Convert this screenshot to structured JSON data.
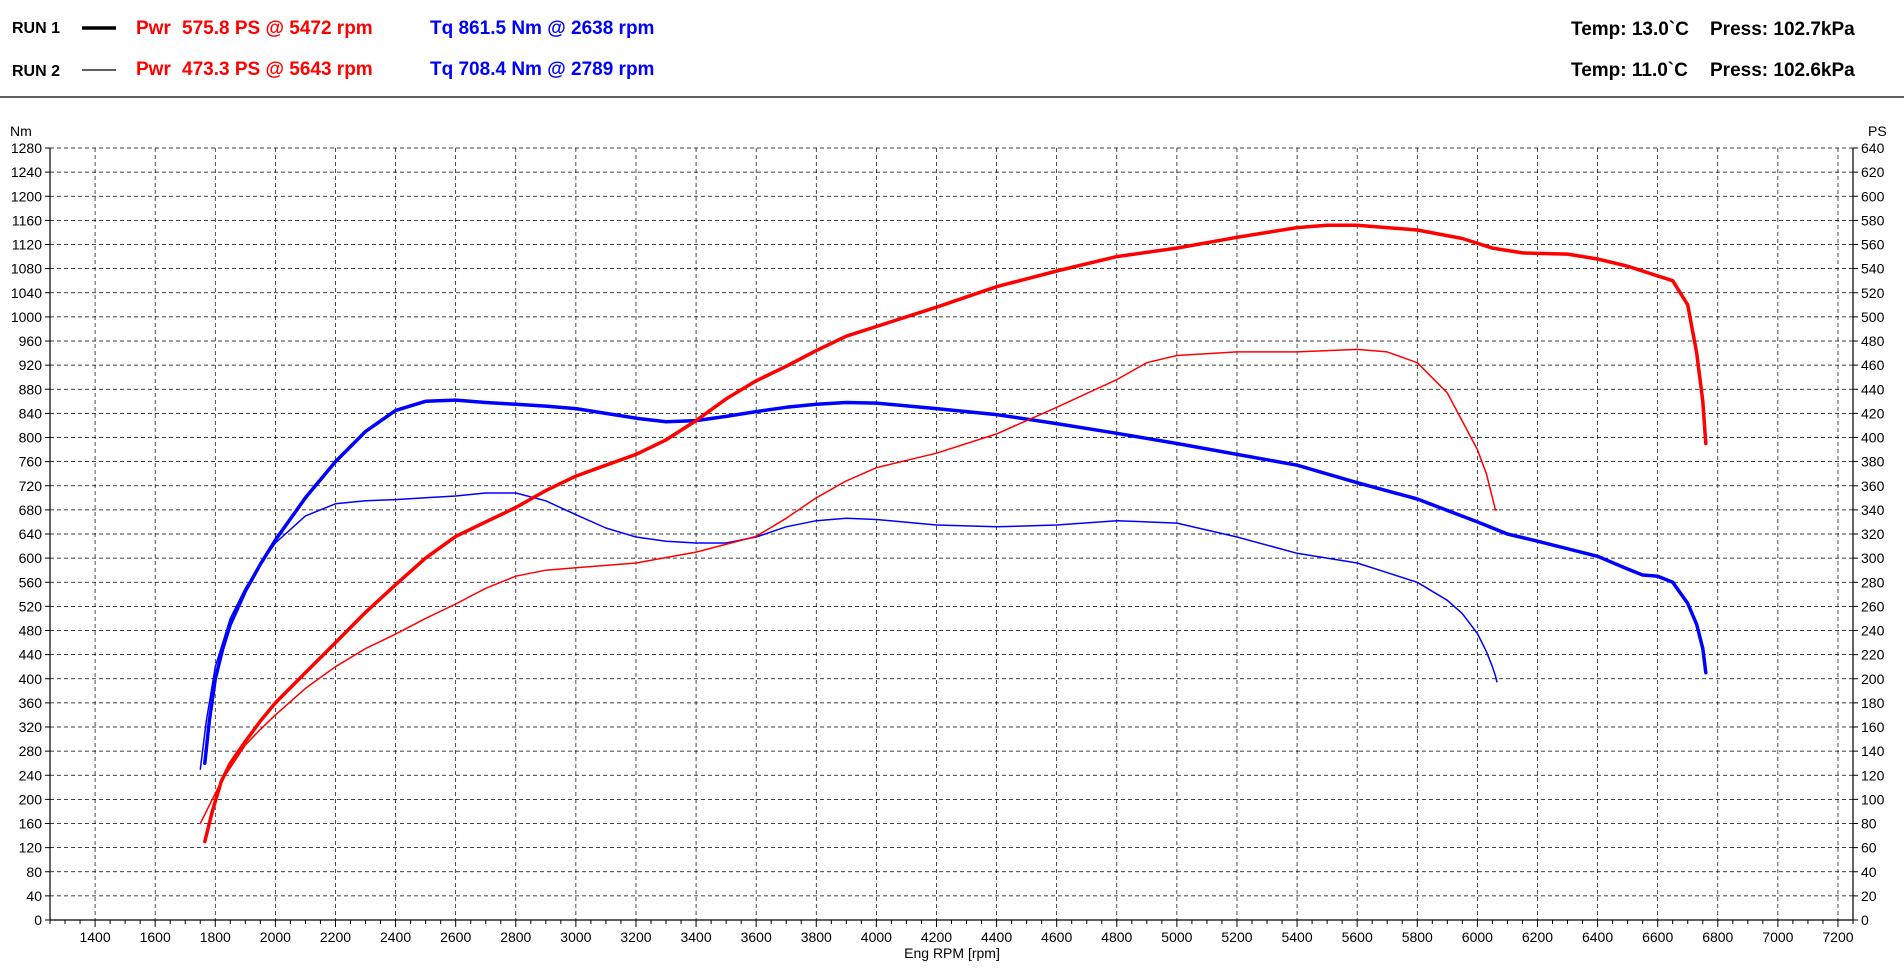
{
  "header": {
    "runs": [
      {
        "label": "RUN 1",
        "pwr_label": "Pwr",
        "pwr": "575.8 PS @ 5472 rpm",
        "tq": "Tq 861.5 Nm @ 2638 rpm",
        "temp": "Temp: 13.0`C",
        "press": "Press: 102.7kPa"
      },
      {
        "label": "RUN 2",
        "pwr_label": "Pwr",
        "pwr": "473.3 PS @ 5643 rpm",
        "tq": "Tq 708.4 Nm @ 2789 rpm",
        "temp": "Temp: 11.0`C",
        "press": "Press: 102.6kPa"
      }
    ]
  },
  "chart_data": {
    "type": "line",
    "title": "",
    "xlabel": "Eng RPM [rpm]",
    "ylabel_left": "Nm",
    "ylabel_right": "PS",
    "xlim": [
      1250,
      7250
    ],
    "ylim_left": [
      0,
      1280
    ],
    "ylim_right": [
      0,
      640
    ],
    "x_ticks": [
      1400,
      1600,
      1800,
      2000,
      2200,
      2400,
      2600,
      2800,
      3000,
      3200,
      3400,
      3600,
      3800,
      4000,
      4200,
      4400,
      4600,
      4800,
      5000,
      5200,
      5400,
      5600,
      5800,
      6000,
      6200,
      6400,
      6600,
      6800,
      7000,
      7200
    ],
    "y_ticks_left": [
      0,
      40,
      80,
      120,
      160,
      200,
      240,
      280,
      320,
      360,
      400,
      440,
      480,
      520,
      560,
      600,
      640,
      680,
      720,
      760,
      800,
      840,
      880,
      920,
      960,
      1000,
      1040,
      1080,
      1120,
      1160,
      1200,
      1240,
      1280
    ],
    "y_ticks_right": [
      0,
      20,
      40,
      60,
      80,
      100,
      120,
      140,
      160,
      180,
      200,
      220,
      240,
      260,
      280,
      300,
      320,
      340,
      360,
      380,
      400,
      420,
      440,
      460,
      480,
      500,
      520,
      540,
      560,
      580,
      600,
      620,
      640
    ],
    "grid": true,
    "series": [
      {
        "name": "Tq",
        "run": "RUN 1",
        "axis": "left",
        "color": "#0000ff",
        "width": 3.5,
        "x": [
          1765,
          1780,
          1800,
          1825,
          1850,
          1900,
          1950,
          2000,
          2100,
          2200,
          2300,
          2400,
          2500,
          2600,
          2700,
          2800,
          2900,
          3000,
          3100,
          3200,
          3300,
          3400,
          3500,
          3600,
          3700,
          3800,
          3900,
          4000,
          4200,
          4400,
          4600,
          4800,
          5000,
          5200,
          5400,
          5600,
          5800,
          6000,
          6100,
          6200,
          6400,
          6500,
          6550,
          6600,
          6650,
          6700,
          6730,
          6750,
          6760
        ],
        "y": [
          260,
          330,
          400,
          450,
          490,
          545,
          590,
          630,
          700,
          760,
          810,
          845,
          860,
          862,
          858,
          855,
          852,
          848,
          840,
          832,
          826,
          828,
          835,
          843,
          850,
          855,
          858,
          857,
          848,
          838,
          823,
          807,
          790,
          772,
          754,
          725,
          698,
          660,
          640,
          628,
          603,
          582,
          572,
          570,
          560,
          525,
          490,
          450,
          410
        ]
      },
      {
        "name": "Tq",
        "run": "RUN 2",
        "axis": "left",
        "color": "#0000ff",
        "width": 1.5,
        "x": [
          1750,
          1770,
          1800,
          1850,
          1900,
          1950,
          2000,
          2100,
          2200,
          2300,
          2400,
          2500,
          2600,
          2700,
          2800,
          2900,
          3000,
          3100,
          3200,
          3300,
          3400,
          3500,
          3600,
          3700,
          3800,
          3900,
          4000,
          4200,
          4400,
          4600,
          4800,
          5000,
          5200,
          5400,
          5600,
          5800,
          5900,
          5950,
          6000,
          6030,
          6050,
          6060,
          6065
        ],
        "y": [
          250,
          330,
          420,
          500,
          550,
          590,
          625,
          670,
          690,
          695,
          697,
          700,
          703,
          708,
          708,
          695,
          672,
          650,
          635,
          628,
          625,
          625,
          635,
          652,
          662,
          666,
          664,
          655,
          652,
          655,
          662,
          658,
          635,
          608,
          592,
          560,
          530,
          508,
          475,
          445,
          420,
          405,
          395
        ]
      },
      {
        "name": "Pwr",
        "run": "RUN 1",
        "axis": "right",
        "color": "#ff0000",
        "width": 3.5,
        "x": [
          1765,
          1790,
          1820,
          1850,
          1900,
          1950,
          2000,
          2100,
          2200,
          2300,
          2400,
          2500,
          2600,
          2700,
          2800,
          2900,
          3000,
          3100,
          3200,
          3300,
          3400,
          3500,
          3600,
          3700,
          3800,
          3900,
          4000,
          4200,
          4400,
          4600,
          4800,
          5000,
          5200,
          5400,
          5500,
          5600,
          5800,
          5950,
          6050,
          6150,
          6300,
          6400,
          6500,
          6600,
          6650,
          6700,
          6730,
          6750,
          6760
        ],
        "y": [
          65,
          90,
          115,
          130,
          148,
          165,
          180,
          205,
          230,
          255,
          278,
          300,
          318,
          330,
          342,
          356,
          368,
          377,
          386,
          398,
          414,
          432,
          447,
          459,
          472,
          484,
          492,
          508,
          525,
          538,
          550,
          557,
          566,
          574,
          576,
          576,
          572,
          565,
          557,
          553,
          552,
          548,
          542,
          534,
          530,
          510,
          470,
          430,
          395
        ]
      },
      {
        "name": "Pwr",
        "run": "RUN 2",
        "axis": "right",
        "color": "#ff0000",
        "width": 1.5,
        "x": [
          1750,
          1780,
          1820,
          1860,
          1900,
          1950,
          2000,
          2100,
          2200,
          2300,
          2400,
          2500,
          2600,
          2700,
          2800,
          2900,
          3000,
          3200,
          3400,
          3600,
          3700,
          3800,
          3900,
          4000,
          4200,
          4400,
          4600,
          4800,
          4900,
          5000,
          5200,
          5400,
          5600,
          5700,
          5800,
          5900,
          6000,
          6030,
          6050,
          6060,
          6065
        ],
        "y": [
          80,
          95,
          115,
          130,
          145,
          158,
          170,
          192,
          210,
          225,
          237,
          250,
          262,
          275,
          285,
          290,
          292,
          296,
          305,
          318,
          333,
          350,
          364,
          375,
          387,
          403,
          425,
          448,
          462,
          468,
          471,
          471,
          473,
          471,
          462,
          437,
          390,
          370,
          350,
          340,
          340
        ]
      }
    ]
  }
}
